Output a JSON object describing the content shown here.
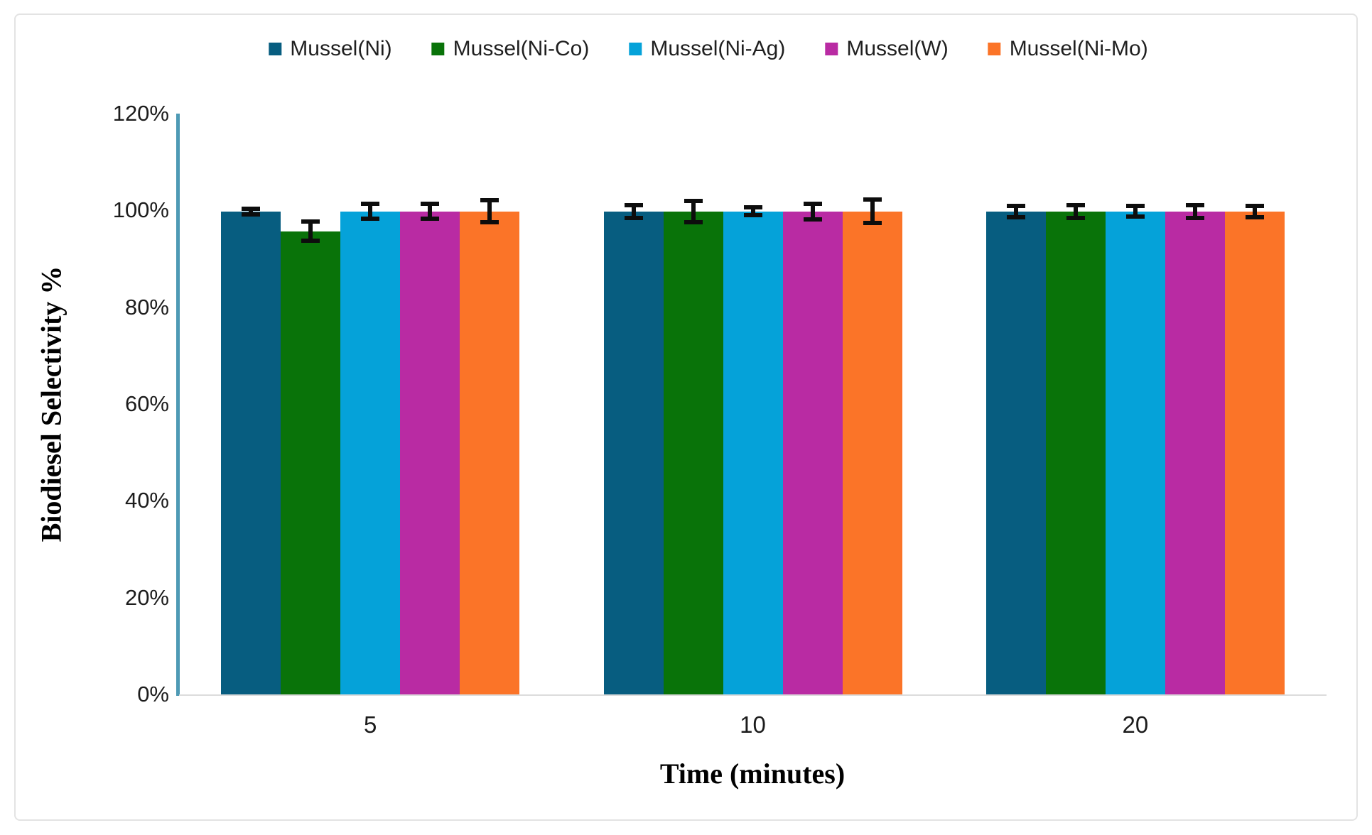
{
  "figure": {
    "background": "#ffffff",
    "border_color": "#e3e3e3"
  },
  "chart_data": {
    "type": "bar",
    "title": "",
    "xlabel": "Time (minutes)",
    "ylabel": "Biodiesel Selectivity %",
    "categories": [
      "5",
      "10",
      "20"
    ],
    "series": [
      {
        "name": "Mussel(Ni)",
        "color": "#075d80",
        "values": [
          99.8,
          99.8,
          99.8
        ],
        "errors": [
          0.6,
          1.3,
          1.2
        ]
      },
      {
        "name": "Mussel(Ni-Co)",
        "color": "#097309",
        "values": [
          95.7,
          99.8,
          99.8
        ],
        "errors": [
          2.0,
          2.2,
          1.3
        ]
      },
      {
        "name": "Mussel(Ni-Ag)",
        "color": "#05a2d9",
        "values": [
          99.8,
          99.8,
          99.8
        ],
        "errors": [
          1.5,
          0.8,
          1.1
        ]
      },
      {
        "name": "Mussel(W)",
        "color": "#b92ba3",
        "values": [
          99.8,
          99.8,
          99.8
        ],
        "errors": [
          1.5,
          1.6,
          1.3
        ]
      },
      {
        "name": "Mussel(Ni-Mo)",
        "color": "#fb7428",
        "values": [
          99.8,
          99.8,
          99.8
        ],
        "errors": [
          2.3,
          2.4,
          1.2
        ]
      }
    ],
    "ylim": [
      0,
      120
    ],
    "ytick_step": 20,
    "ytick_labels": [
      "0%",
      "20%",
      "40%",
      "60%",
      "80%",
      "100%",
      "120%"
    ],
    "legend_position": "top",
    "grid": false,
    "error_bar_color": "#0d0d0d",
    "y_axis_line_color": "#4e9ab5",
    "x_axis_line_color": "#dcdcdc"
  }
}
